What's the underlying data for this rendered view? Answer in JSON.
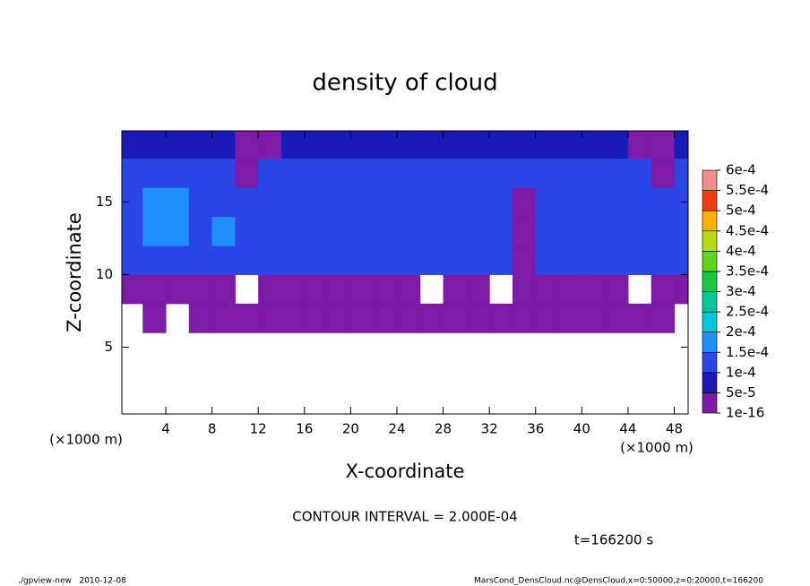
{
  "chart_data": {
    "type": "contour",
    "title": "density of cloud",
    "xlabel": "X-coordinate",
    "ylabel": "Z-coordinate",
    "x_unit": "(×1000 m)",
    "y_unit": "(×1000 m)",
    "xlim": [
      0.2,
      49.2
    ],
    "ylim": [
      0.4,
      19.9
    ],
    "xticks": [
      4,
      8,
      12,
      16,
      20,
      24,
      28,
      32,
      36,
      40,
      44,
      48
    ],
    "yticks": [
      5,
      10,
      15
    ],
    "xbins": [
      0,
      2,
      4,
      6,
      8,
      10,
      12,
      14,
      16,
      18,
      20,
      22,
      24,
      26,
      28,
      30,
      32,
      34,
      36,
      38,
      40,
      42,
      44,
      46,
      48,
      50
    ],
    "zbins": [
      0,
      2,
      4,
      6,
      8,
      10,
      12,
      14,
      16,
      18,
      20
    ],
    "levels": [
      {
        "value": 1e-16,
        "label": "1e-16"
      },
      {
        "value": 5e-05,
        "label": "5e-5"
      },
      {
        "value": 0.0001,
        "label": "1e-4"
      },
      {
        "value": 0.00015,
        "label": "1.5e-4"
      },
      {
        "value": 0.0002,
        "label": "2e-4"
      },
      {
        "value": 0.00025,
        "label": "2.5e-4"
      },
      {
        "value": 0.0003,
        "label": "3e-4"
      },
      {
        "value": 0.00035,
        "label": "3.5e-4"
      },
      {
        "value": 0.0004,
        "label": "4e-4"
      },
      {
        "value": 0.00045,
        "label": "4.5e-4"
      },
      {
        "value": 0.0005,
        "label": "5e-4"
      },
      {
        "value": 0.00055,
        "label": "5.5e-4"
      },
      {
        "value": 0.0006,
        "label": "6e-4"
      }
    ],
    "colors": [
      "#7d1aa8",
      "#1a1ab8",
      "#2a46e6",
      "#2090ff",
      "#00c8dc",
      "#00c896",
      "#18c840",
      "#60d420",
      "#b4dc10",
      "#f8b400",
      "#f03c14",
      "#f08c8c"
    ],
    "values": [
      [
        null,
        null,
        null,
        null,
        null,
        null,
        null,
        null,
        null,
        null,
        null,
        null,
        null,
        null,
        null,
        null,
        null,
        null,
        null,
        null,
        null,
        null,
        null,
        null,
        null
      ],
      [
        null,
        null,
        null,
        null,
        null,
        null,
        null,
        null,
        null,
        null,
        null,
        null,
        null,
        null,
        null,
        null,
        null,
        null,
        null,
        null,
        null,
        null,
        null,
        null,
        null
      ],
      [
        null,
        null,
        null,
        null,
        null,
        null,
        null,
        null,
        null,
        null,
        null,
        null,
        null,
        null,
        null,
        null,
        null,
        null,
        null,
        null,
        null,
        null,
        null,
        null,
        null
      ],
      [
        null,
        1e-16,
        null,
        1e-16,
        1e-16,
        1e-16,
        1e-16,
        1e-16,
        1e-16,
        1e-16,
        1e-16,
        1e-16,
        1e-16,
        1e-16,
        1e-16,
        1e-16,
        1e-16,
        1e-16,
        1e-16,
        1e-16,
        1e-16,
        1e-16,
        1e-16,
        1e-16,
        null
      ],
      [
        1e-16,
        1e-16,
        1e-16,
        1e-16,
        1e-16,
        null,
        1e-16,
        1e-16,
        1e-16,
        1e-16,
        1e-16,
        1e-16,
        1e-16,
        null,
        1e-16,
        1e-16,
        null,
        1e-16,
        1e-16,
        1e-16,
        1e-16,
        1e-16,
        null,
        1e-16,
        1e-16
      ],
      [
        0.00011,
        0.00011,
        0.00011,
        0.00011,
        0.00011,
        0.00011,
        0.00011,
        0.00011,
        0.00011,
        0.00011,
        0.00011,
        0.00011,
        0.00011,
        0.00011,
        0.00011,
        0.00011,
        0.00011,
        1e-16,
        0.00011,
        0.00011,
        0.00011,
        0.00011,
        0.00011,
        0.00011,
        0.00011
      ],
      [
        0.00011,
        0.00016,
        0.00016,
        0.00011,
        0.00016,
        0.00011,
        0.00011,
        0.00011,
        0.00011,
        0.00011,
        0.00011,
        0.00011,
        0.00011,
        0.00011,
        0.00011,
        0.00011,
        0.00011,
        1e-16,
        0.00011,
        0.00011,
        0.00011,
        0.00011,
        0.00011,
        0.00011,
        0.00011
      ],
      [
        0.00011,
        0.00016,
        0.00016,
        0.00011,
        0.00011,
        0.00011,
        0.00011,
        0.00011,
        0.00011,
        0.00011,
        0.00011,
        0.00011,
        0.00011,
        0.00011,
        0.00011,
        0.00011,
        0.00011,
        1e-16,
        0.00011,
        0.00011,
        0.00011,
        0.00011,
        0.00011,
        0.00011,
        0.00011
      ],
      [
        0.00011,
        0.00011,
        0.00011,
        0.00011,
        0.00011,
        1e-16,
        0.00011,
        0.00011,
        0.00011,
        0.00011,
        0.00011,
        0.00011,
        0.00011,
        0.00011,
        0.00011,
        0.00011,
        0.00011,
        0.00011,
        0.00011,
        0.00011,
        0.00011,
        0.00011,
        0.00011,
        1e-16,
        0.00011
      ],
      [
        7e-05,
        7e-05,
        7e-05,
        7e-05,
        7e-05,
        1e-16,
        1e-16,
        7e-05,
        7e-05,
        7e-05,
        7e-05,
        7e-05,
        7e-05,
        7e-05,
        7e-05,
        7e-05,
        7e-05,
        7e-05,
        7e-05,
        7e-05,
        7e-05,
        7e-05,
        1e-16,
        1e-16,
        7e-05
      ]
    ],
    "note": "CONTOUR INTERVAL = 2.000E-04",
    "time": "t=166200 s",
    "footer_left": "./gpview-new   2010-12-08",
    "footer_right": "MarsCond_DensCloud.nc@DensCloud,x=0:50000,z=0:20000,t=166200"
  }
}
